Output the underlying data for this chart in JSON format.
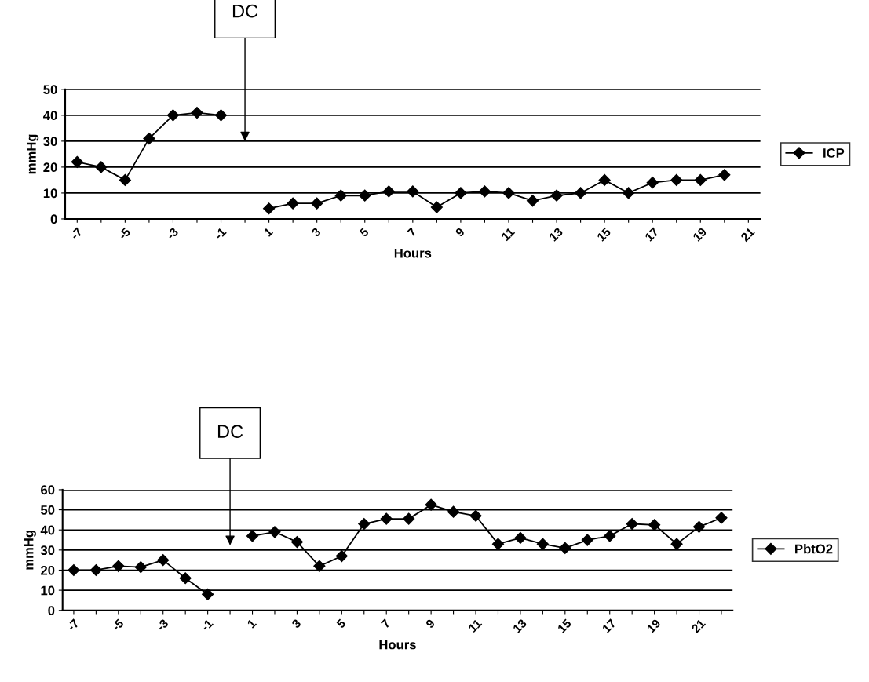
{
  "chart_data": [
    {
      "type": "line",
      "xlabel": "Hours",
      "ylabel": "mmHg",
      "categories": [
        "-7",
        null,
        "-5",
        null,
        "-3",
        null,
        "-1",
        null,
        "1",
        null,
        "3",
        null,
        "5",
        null,
        "7",
        null,
        "9",
        null,
        "11",
        null,
        "13",
        null,
        "15",
        null,
        "17",
        null,
        "19",
        null,
        "21"
      ],
      "series": [
        {
          "name": "ICP",
          "color": "#000000",
          "values": [
            22,
            20,
            15,
            31,
            40,
            41,
            40,
            null,
            4,
            6,
            6,
            9,
            9,
            10.6,
            10.6,
            4.5,
            10,
            10.6,
            10,
            7,
            9,
            10,
            15,
            10,
            14,
            15,
            15,
            17,
            null
          ]
        }
      ],
      "ylim": [
        0,
        50
      ],
      "yticks": [
        0,
        10,
        20,
        30,
        40,
        50
      ],
      "grid": "y",
      "legend": "right",
      "marker": "diamond",
      "line_style": "solid",
      "annotations": [
        "DC"
      ]
    },
    {
      "type": "line",
      "xlabel": "Hours",
      "ylabel": "mmHg",
      "categories": [
        "-7",
        null,
        "-5",
        null,
        "-3",
        null,
        "-1",
        null,
        "1",
        null,
        "3",
        null,
        "5",
        null,
        "7",
        null,
        "9",
        null,
        "11",
        null,
        "13",
        null,
        "15",
        null,
        "17",
        null,
        "19",
        null,
        "21",
        null
      ],
      "series": [
        {
          "name": "PbtO2",
          "color": "#000000",
          "values": [
            20,
            20,
            22,
            21.5,
            25,
            16,
            8,
            null,
            37,
            39,
            34,
            22,
            27,
            43,
            45.5,
            45.5,
            52.5,
            49,
            47,
            33,
            36,
            33,
            31,
            35,
            37,
            43,
            42.5,
            33,
            41.5,
            46
          ]
        }
      ],
      "ylim": [
        0,
        60
      ],
      "yticks": [
        0,
        10,
        20,
        30,
        40,
        50,
        60
      ],
      "grid": "y",
      "legend": "right",
      "marker": "diamond",
      "line_style": "solid",
      "annotations": [
        "DC"
      ]
    }
  ]
}
